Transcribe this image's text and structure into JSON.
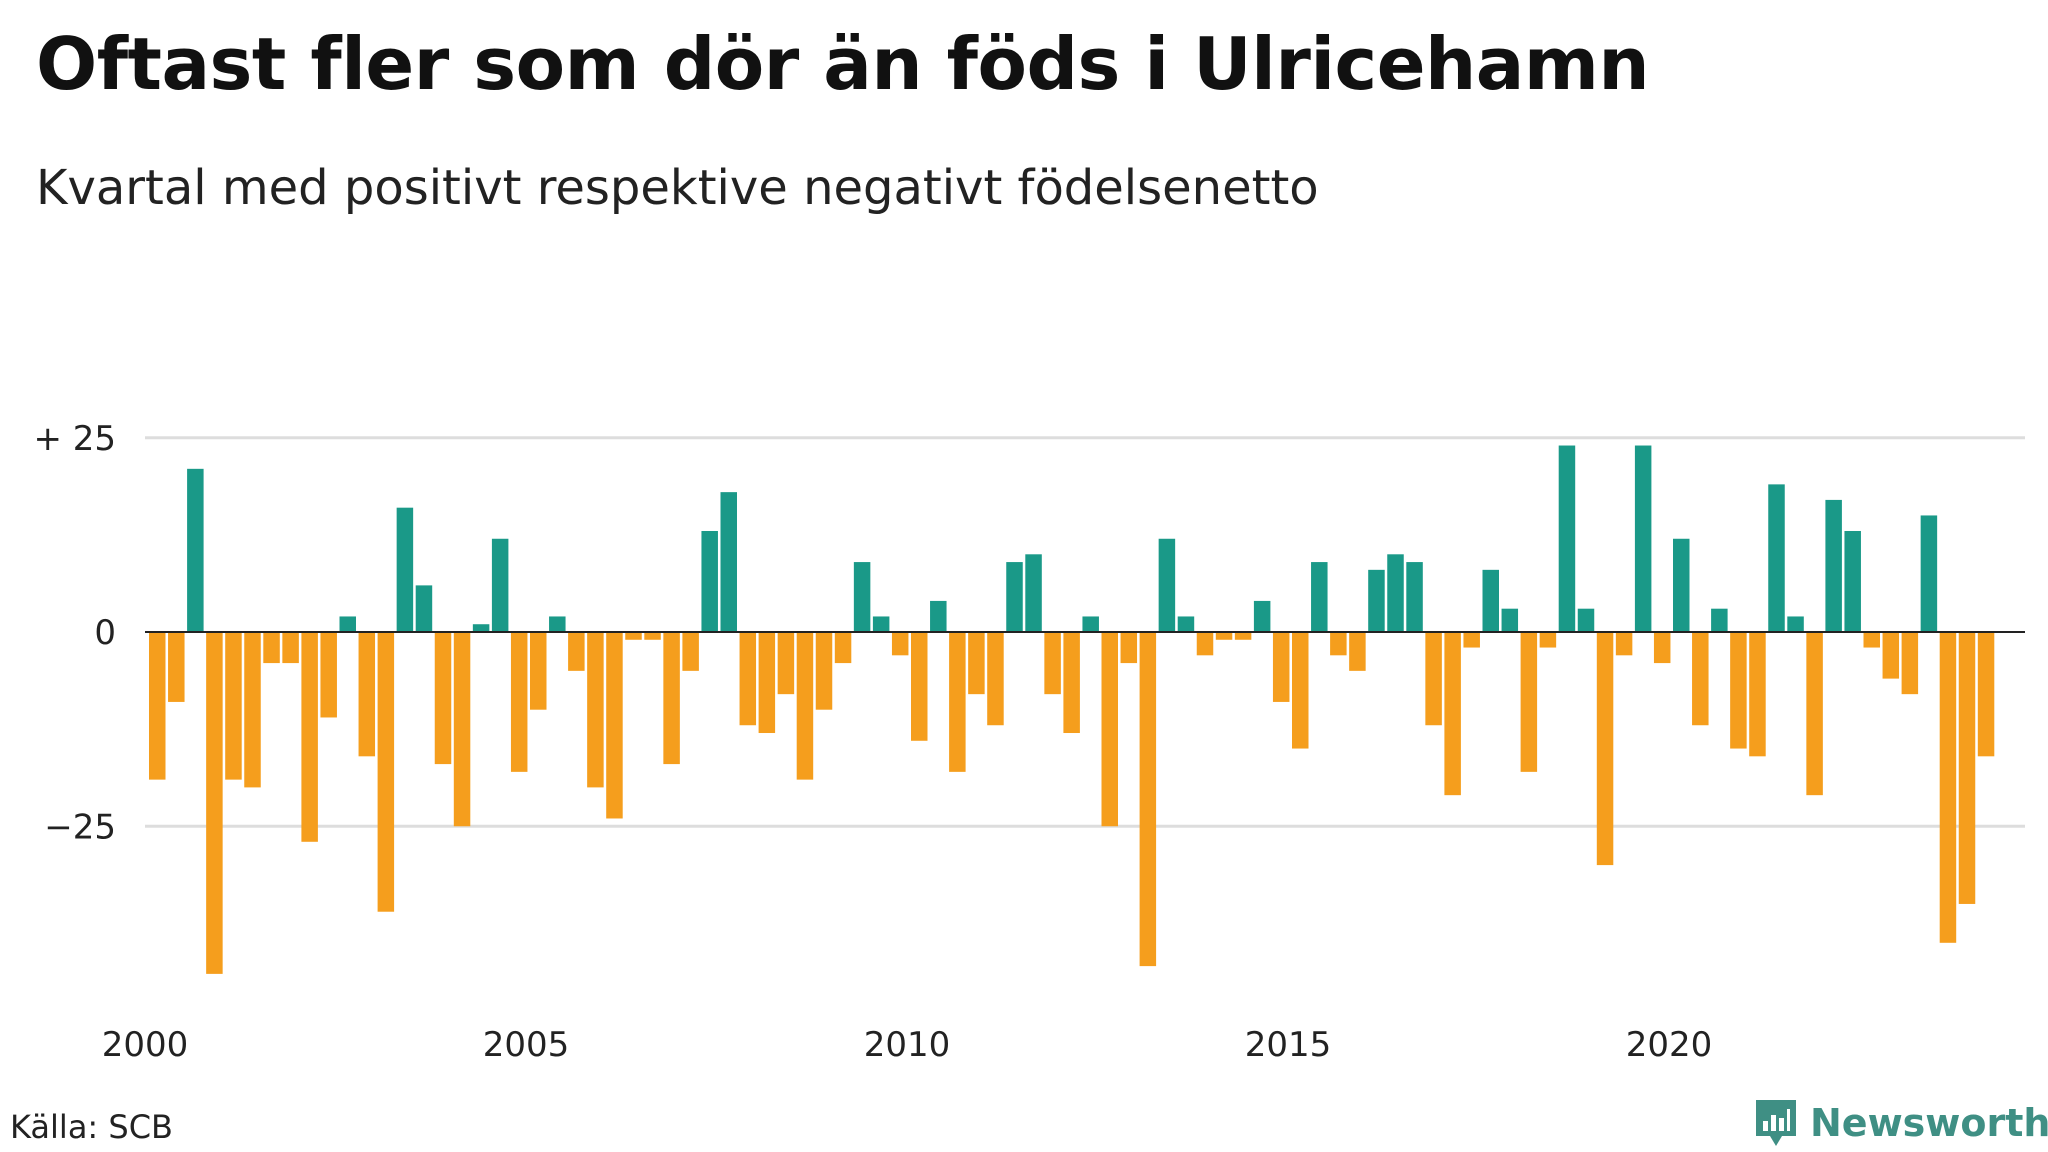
{
  "title": "Oftast fler som dör än föds i Ulricehamn",
  "subtitle": "Kvartal med positivt respektive negativt födelsenetto",
  "source": "Källa: SCB",
  "brand": {
    "name": "Newsworthy",
    "icon": "newsworthy-logo-icon"
  },
  "colors": {
    "positive": "#1a9988",
    "negative": "#f59e1d",
    "grid": "#dddddd",
    "zero": "#222222"
  },
  "chart_data": {
    "type": "bar",
    "x_start": "2000 Q1",
    "frequency": "quarter",
    "values": [
      -19,
      -9,
      21,
      -44,
      -19,
      -20,
      -4,
      -4,
      -27,
      -11,
      2,
      -16,
      -36,
      16,
      6,
      -17,
      -25,
      1,
      12,
      -18,
      -10,
      2,
      -5,
      -20,
      -24,
      -1,
      -1,
      -17,
      -5,
      13,
      18,
      -12,
      -13,
      -8,
      -19,
      -10,
      -4,
      9,
      2,
      -3,
      -14,
      4,
      -18,
      -8,
      -12,
      9,
      10,
      -8,
      -13,
      2,
      -25,
      -4,
      -43,
      12,
      2,
      -3,
      -1,
      -1,
      4,
      -9,
      -15,
      9,
      -3,
      -5,
      8,
      10,
      9,
      -12,
      -21,
      -2,
      8,
      3,
      -18,
      -2,
      24,
      3,
      -30,
      -3,
      24,
      -4,
      12,
      -12,
      3,
      -15,
      -16,
      19,
      2,
      -21,
      17,
      13,
      -2,
      -6,
      -8,
      15,
      -40,
      -35,
      -16
    ],
    "x_ticks": [
      "2000",
      "2005",
      "2010",
      "2015",
      "2020"
    ],
    "y_ticks": [
      {
        "value": 25,
        "label": "+ 25"
      },
      {
        "value": 0,
        "label": "0"
      },
      {
        "value": -25,
        "label": "−25"
      }
    ],
    "ylim": [
      -48,
      28
    ],
    "grid": true,
    "legend": "none"
  }
}
